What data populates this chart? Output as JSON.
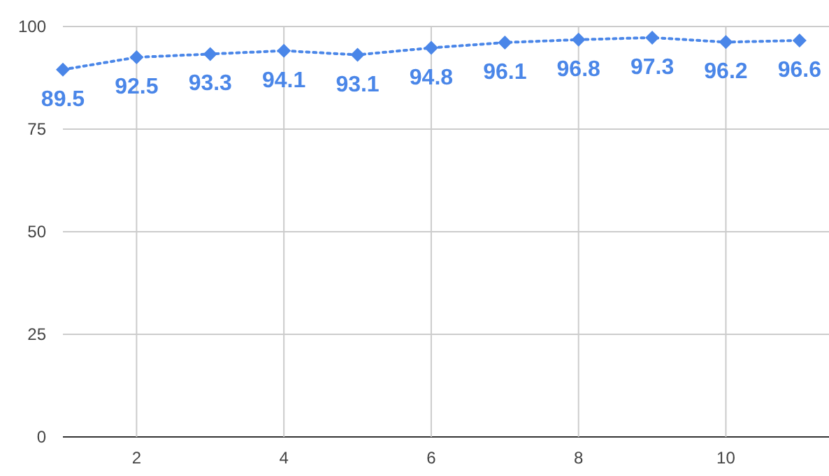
{
  "chart_data": {
    "type": "line",
    "x": [
      1,
      2,
      3,
      4,
      5,
      6,
      7,
      8,
      9,
      10,
      11
    ],
    "series": [
      {
        "color": "#4a86e8",
        "values": [
          89.5,
          92.5,
          93.3,
          94.1,
          93.1,
          94.8,
          96.1,
          96.8,
          97.3,
          96.2,
          96.6
        ]
      }
    ],
    "xlim": [
      1,
      11.4
    ],
    "xticks": [
      2,
      4,
      6,
      8,
      10
    ],
    "ylim": [
      0,
      100
    ],
    "yticks": [
      0,
      25,
      50,
      75,
      100
    ],
    "grid": true,
    "marker": "diamond",
    "line_style": "dotted",
    "data_labels": true
  }
}
